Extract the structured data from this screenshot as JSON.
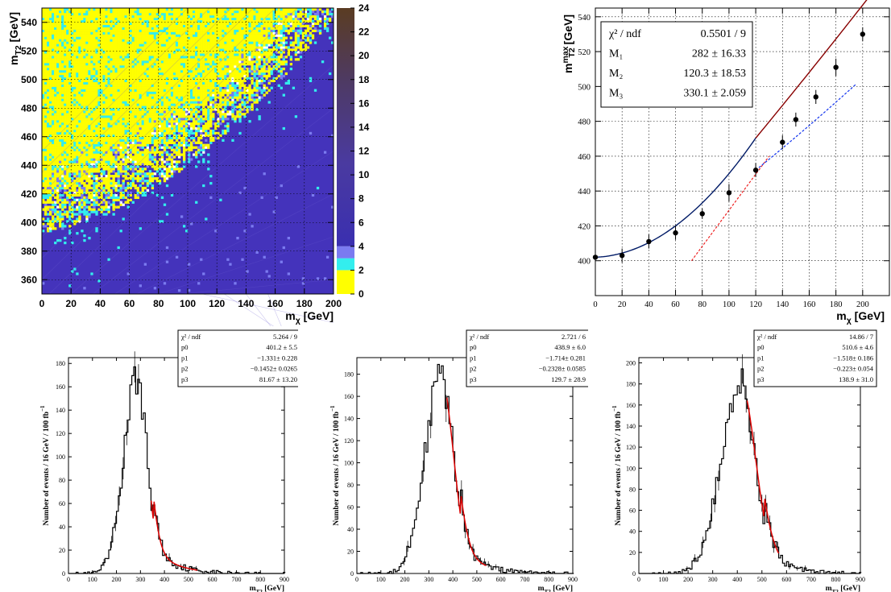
{
  "chart_data": [
    {
      "type": "heatmap",
      "x_title": "m",
      "x_sub": "χ",
      "x_unit": " [GeV]",
      "y_title": "m",
      "y_sub": "T2",
      "y_unit": " [GeV]",
      "xlim": [
        0,
        200
      ],
      "ylim": [
        350,
        550
      ],
      "x_ticks": [
        0,
        20,
        40,
        60,
        80,
        100,
        120,
        140,
        160,
        180,
        200
      ],
      "y_ticks": [
        360,
        380,
        400,
        420,
        440,
        460,
        480,
        500,
        520,
        540
      ],
      "z_ticks": [
        0,
        2,
        4,
        6,
        8,
        10,
        12,
        14,
        16,
        18,
        20,
        22,
        24
      ],
      "zlim": [
        0,
        24
      ],
      "colors": {
        "low": "#ffff00",
        "band2": "#33eeee",
        "band3": "#7b7bf0",
        "mid": "#4433bb",
        "high": "#5a3c22"
      },
      "grid": true
    },
    {
      "type": "scatter",
      "x_title": "m",
      "x_sub": "χ",
      "x_unit": " [GeV]",
      "y_title": "m",
      "y_sub": "T2",
      "y_sup": "max",
      "y_unit": " [GeV]",
      "xlim": [
        0,
        220
      ],
      "ylim": [
        380,
        545
      ],
      "x_ticks": [
        0,
        20,
        40,
        60,
        80,
        100,
        120,
        140,
        160,
        180,
        200
      ],
      "y_ticks": [
        400,
        420,
        440,
        460,
        480,
        500,
        520,
        540
      ],
      "x": [
        0,
        20,
        40,
        60,
        80,
        100,
        120,
        140,
        150,
        165,
        180,
        200
      ],
      "y": [
        402,
        403,
        411,
        416,
        427,
        439,
        452,
        468,
        481,
        494,
        511,
        530
      ],
      "yerr": [
        4,
        4,
        4,
        4,
        3,
        5,
        4,
        4,
        4,
        4,
        5,
        4
      ],
      "grid": true,
      "stats": [
        {
          "name": "χ² / ndf",
          "value": "0.5501 / 9"
        },
        {
          "name": "M₁",
          "value": "282 ± 16.33"
        },
        {
          "name": "M₂",
          "value": "120.3 ± 18.53"
        },
        {
          "name": "M₃",
          "value": "330.1 ± 2.059"
        }
      ],
      "colors": {
        "fit_low": "#001a66",
        "fit_high": "#880000",
        "dash_red": "#ee2222",
        "dash_blue": "#1133ee"
      }
    },
    {
      "type": "bar",
      "x_title": "m",
      "x_sub": "T2",
      "x_unit": " [GeV]",
      "y_title": "Number of events / 16 GeV / 100 fb",
      "y_sup": "−1",
      "xlim": [
        0,
        900
      ],
      "ylim": [
        0,
        185
      ],
      "x_ticks": [
        0,
        100,
        200,
        300,
        400,
        500,
        600,
        700,
        800,
        900
      ],
      "y_ticks": [
        0,
        20,
        40,
        60,
        80,
        100,
        120,
        140,
        160,
        180
      ],
      "peak": 285,
      "peak_value": 167,
      "fit_range": [
        345,
        540
      ],
      "stats": [
        {
          "name": "χ² / ndf",
          "value": "5.264 / 9"
        },
        {
          "name": "p0",
          "value": "401.2 ± 5.5"
        },
        {
          "name": "p1",
          "value": "−1.331± 0.228"
        },
        {
          "name": "p2",
          "value": "−0.1452± 0.0265"
        },
        {
          "name": "p3",
          "value": "81.67 ± 13.20"
        }
      ]
    },
    {
      "type": "bar",
      "x_title": "m",
      "x_sub": "T2",
      "x_unit": " [GeV]",
      "y_title": "Number of events / 16 GeV / 100 fb",
      "y_sup": "−1",
      "xlim": [
        0,
        900
      ],
      "ylim": [
        0,
        195
      ],
      "x_ticks": [
        0,
        100,
        200,
        300,
        400,
        500,
        600,
        700,
        800,
        900
      ],
      "y_ticks": [
        0,
        20,
        40,
        60,
        80,
        100,
        120,
        140,
        160,
        180
      ],
      "peak": 350,
      "peak_value": 178,
      "fit_range": [
        375,
        540
      ],
      "stats": [
        {
          "name": "χ² / ndf",
          "value": "2.721 / 6"
        },
        {
          "name": "p0",
          "value": "438.9 ± 6.0"
        },
        {
          "name": "p1",
          "value": "−1.714± 0.281"
        },
        {
          "name": "p2",
          "value": "−0.2328± 0.0585"
        },
        {
          "name": "p3",
          "value": "129.7 ± 28.9"
        }
      ]
    },
    {
      "type": "bar",
      "x_title": "m",
      "x_sub": "T2",
      "x_unit": " [GeV]",
      "y_title": "Number of events / 16 GeV / 100 fb",
      "y_sup": "−1",
      "xlim": [
        0,
        900
      ],
      "ylim": [
        0,
        205
      ],
      "x_ticks": [
        0,
        100,
        200,
        300,
        400,
        500,
        600,
        700,
        800,
        900
      ],
      "y_ticks": [
        0,
        20,
        40,
        60,
        80,
        100,
        120,
        140,
        160,
        180,
        200
      ],
      "peak": 412,
      "peak_value": 182,
      "fit_range": [
        440,
        570
      ],
      "stats": [
        {
          "name": "χ² / ndf",
          "value": "14.86 / 7"
        },
        {
          "name": "p0",
          "value": "510.6 ± 4.6"
        },
        {
          "name": "p1",
          "value": "−1.518± 0.186"
        },
        {
          "name": "p2",
          "value": "−0.223± 0.054"
        },
        {
          "name": "p3",
          "value": "138.9 ± 31.0"
        }
      ]
    }
  ]
}
